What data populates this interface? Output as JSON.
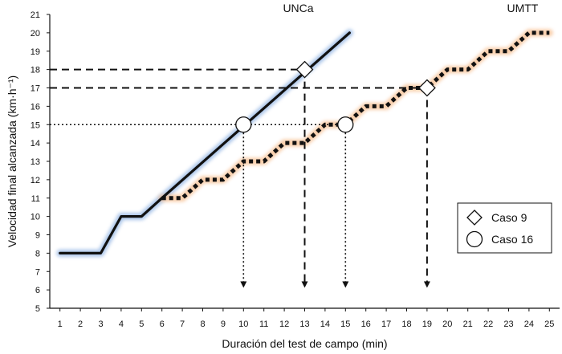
{
  "chart_data": {
    "type": "line",
    "xlabel": "Duración del test de campo (min)",
    "ylabel": "Velocidad final alcanzada (km·h⁻¹)",
    "xlim": [
      0.5,
      25.5
    ],
    "ylim": [
      5,
      21
    ],
    "x_ticks": [
      1,
      2,
      3,
      4,
      5,
      6,
      7,
      8,
      9,
      10,
      11,
      12,
      13,
      14,
      15,
      16,
      17,
      18,
      19,
      20,
      21,
      22,
      23,
      24,
      25
    ],
    "y_ticks": [
      5,
      6,
      7,
      8,
      9,
      10,
      11,
      12,
      13,
      14,
      15,
      16,
      17,
      18,
      19,
      20,
      21
    ],
    "grid": false,
    "series": [
      {
        "name": "UNCa",
        "color": "#111111",
        "glow": "#9dbce6",
        "line_style": "solid",
        "x": [
          1,
          3,
          4,
          5,
          6,
          15.2
        ],
        "y": [
          8,
          8,
          10,
          10,
          11,
          20
        ]
      },
      {
        "name": "UMTT",
        "color": "#111111",
        "glow": "#f7c49a",
        "line_style": "dotted-thick",
        "x": [
          6,
          7,
          8,
          9,
          10,
          11,
          12,
          13,
          14,
          15,
          16,
          17,
          18,
          19,
          20,
          21,
          22,
          23,
          24,
          25
        ],
        "y": [
          11,
          11,
          12,
          12,
          13,
          13,
          14,
          14,
          15,
          15,
          16,
          16,
          17,
          17,
          18,
          18,
          19,
          19,
          20,
          20
        ]
      }
    ],
    "series_labels": [
      {
        "text": "UNCa",
        "x": 13,
        "y": 21
      },
      {
        "text": "UMTT",
        "x": 24,
        "y": 21
      }
    ],
    "markers": [
      {
        "case": "Caso 9",
        "shape": "diamond",
        "x": 13,
        "y": 18
      },
      {
        "case": "Caso 9",
        "shape": "diamond",
        "x": 19,
        "y": 17
      },
      {
        "case": "Caso 16",
        "shape": "circle",
        "x": 10,
        "y": 15
      },
      {
        "case": "Caso 16",
        "shape": "circle",
        "x": 15,
        "y": 15
      }
    ],
    "reference_lines": [
      {
        "type": "horizontal",
        "y": 18,
        "x_end": 13,
        "style": "dashed"
      },
      {
        "type": "horizontal",
        "y": 17,
        "x_end": 19,
        "style": "dashed"
      },
      {
        "type": "horizontal",
        "y": 15,
        "x_end": 15,
        "style": "dotted"
      },
      {
        "type": "vertical",
        "x": 10,
        "y_start": 15,
        "y_end": 6.2,
        "style": "dotted",
        "arrow": true
      },
      {
        "type": "vertical",
        "x": 13,
        "y_start": 18,
        "y_end": 6.2,
        "style": "dashed",
        "arrow": true
      },
      {
        "type": "vertical",
        "x": 15,
        "y_start": 15,
        "y_end": 6.2,
        "style": "dotted",
        "arrow": true
      },
      {
        "type": "vertical",
        "x": 19,
        "y_start": 17,
        "y_end": 6.2,
        "style": "dashed",
        "arrow": true
      }
    ],
    "legend": {
      "placement": "right",
      "entries": [
        {
          "label": "Caso 9",
          "shape": "diamond"
        },
        {
          "label": "Caso 16",
          "shape": "circle"
        }
      ]
    }
  }
}
